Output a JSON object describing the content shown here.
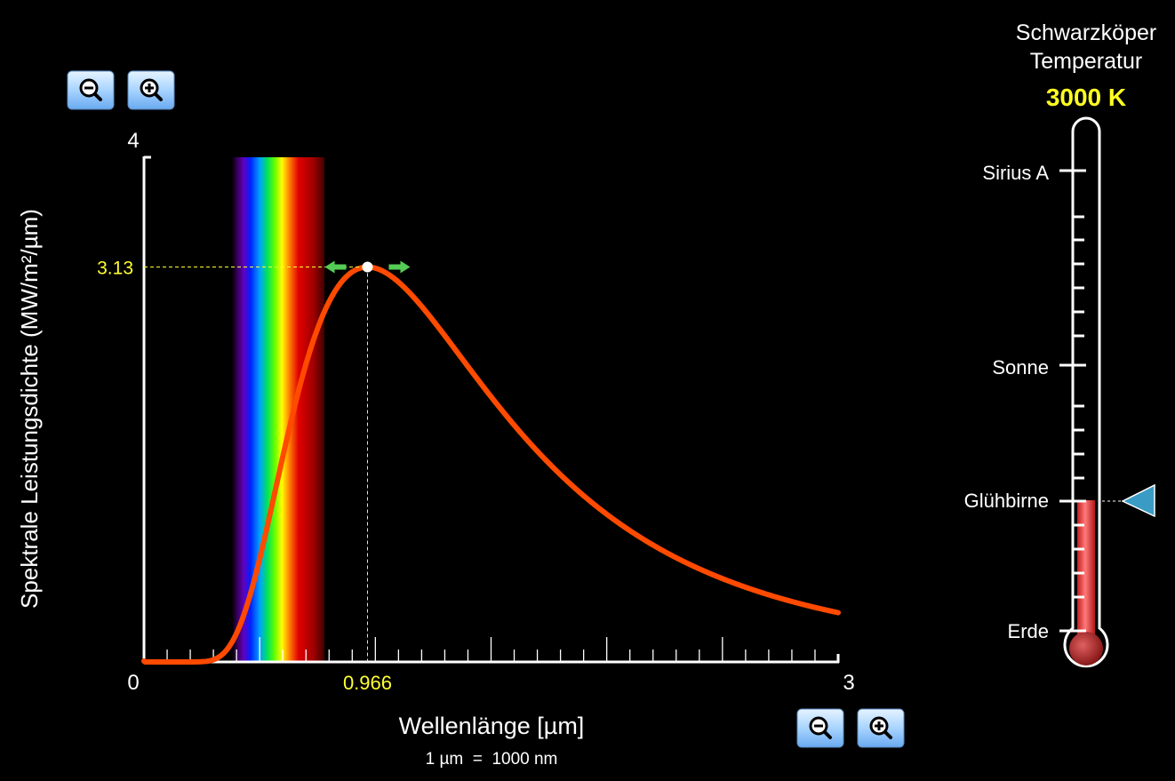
{
  "chart_data": {
    "type": "line",
    "xlabel": "Wellenlänge [µm]",
    "xlabel_sub": "1 µm  =  1000 nm",
    "ylabel": "Spektrale Leistungsdichte (MW/m²/µm)",
    "xlim": [
      0,
      3
    ],
    "ylim": [
      0,
      4
    ],
    "x_tick_labels": {
      "min": "0",
      "max": "3"
    },
    "y_tick_labels": {
      "max": "4"
    },
    "peak": {
      "x": 0.966,
      "y": 3.13,
      "x_label": "0.966",
      "y_label": "3.13"
    },
    "visible_spectrum_um": [
      0.38,
      0.78
    ],
    "series": [
      {
        "temperature_K": 3000,
        "color": "#ff4a00"
      }
    ]
  },
  "thermometer": {
    "title_line1": "Schwarzköper",
    "title_line2": "Temperatur",
    "value_label": "3000 K",
    "value_color": "#ffff22",
    "fill_color": "#e04040",
    "marker_color": "#3a9bc4",
    "markers": [
      {
        "label": "Sirius A"
      },
      {
        "label": "Sonne"
      },
      {
        "label": "Glühbirne"
      },
      {
        "label": "Erde"
      }
    ]
  },
  "controls": {
    "y_zoom_out_icon": "zoom-out-icon",
    "y_zoom_in_icon": "zoom-in-icon",
    "x_zoom_out_icon": "zoom-out-icon",
    "x_zoom_in_icon": "zoom-in-icon"
  }
}
